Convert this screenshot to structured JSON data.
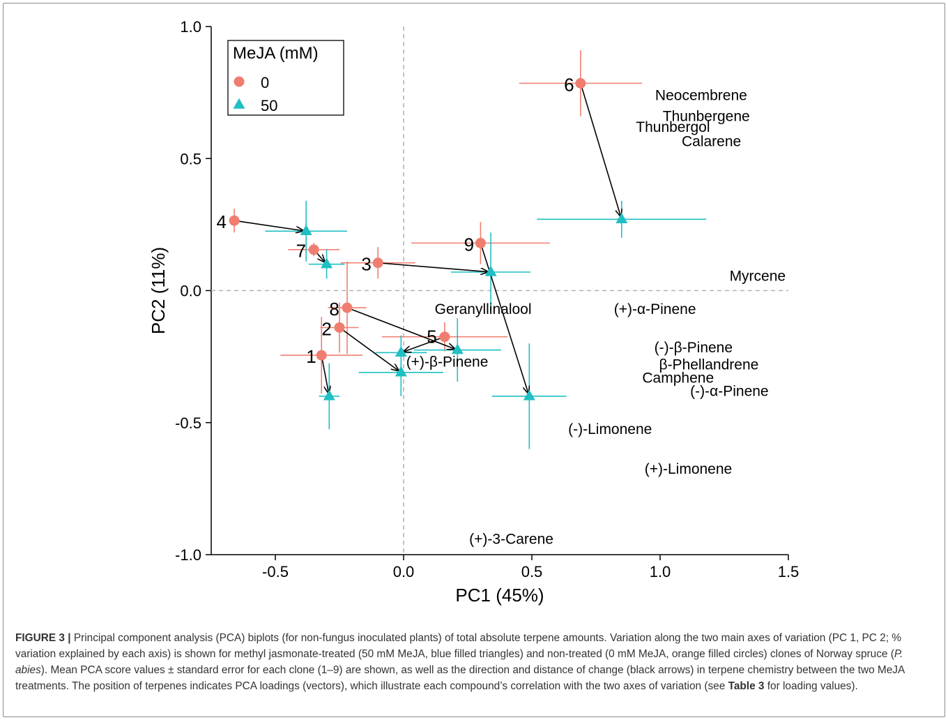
{
  "chart_data": {
    "type": "scatter",
    "xlabel": "PC1 (45%)",
    "ylabel": "PC2 (11%)",
    "xlim": [
      -0.75,
      1.5
    ],
    "ylim": [
      -1.0,
      1.0
    ],
    "xticks": [
      "-0.5",
      "0.0",
      "0.5",
      "1.0",
      "1.5"
    ],
    "xtick_values": [
      -0.5,
      0.0,
      0.5,
      1.0,
      1.5
    ],
    "yticks": [
      "1.0",
      "0.5",
      "0.0",
      "-0.5",
      "-1.0"
    ],
    "ytick_values": [
      1.0,
      0.5,
      0.0,
      -0.5,
      -1.0
    ],
    "reference_lines": {
      "x": 0,
      "y": 0,
      "style": "dashed"
    },
    "legend": {
      "title": "MeJA (mM)",
      "position": "top-left"
    },
    "series": [
      {
        "name": "0",
        "marker": "circle",
        "color": "#F07E70",
        "points": [
          {
            "label": "1",
            "x": -0.32,
            "y": -0.245,
            "xerr": 0.16,
            "yerr": 0.145
          },
          {
            "label": "2",
            "x": -0.25,
            "y": -0.14,
            "xerr": 0.075,
            "yerr": 0.095
          },
          {
            "label": "3",
            "x": -0.1,
            "y": 0.105,
            "xerr": 0.145,
            "yerr": 0.06
          },
          {
            "label": "4",
            "x": -0.66,
            "y": 0.265,
            "xerr": 0.02,
            "yerr": 0.045
          },
          {
            "label": "5",
            "x": 0.16,
            "y": -0.175,
            "xerr": 0.245,
            "yerr": 0.055
          },
          {
            "label": "6",
            "x": 0.69,
            "y": 0.785,
            "xerr": 0.24,
            "yerr": 0.125
          },
          {
            "label": "7",
            "x": -0.35,
            "y": 0.155,
            "xerr": 0.1,
            "yerr": 0.025
          },
          {
            "label": "8",
            "x": -0.22,
            "y": -0.065,
            "xerr": 0.075,
            "yerr": 0.175
          },
          {
            "label": "9",
            "x": 0.3,
            "y": 0.18,
            "xerr": 0.27,
            "yerr": 0.08
          }
        ]
      },
      {
        "name": "50",
        "marker": "triangle",
        "color": "#1FBFC3",
        "points": [
          {
            "label": "1",
            "x": -0.29,
            "y": -0.4,
            "xerr": 0.04,
            "yerr": 0.125
          },
          {
            "label": "2",
            "x": -0.01,
            "y": -0.31,
            "xerr": 0.165,
            "yerr": 0.09
          },
          {
            "label": "3",
            "x": 0.34,
            "y": 0.07,
            "xerr": 0.155,
            "yerr": 0.15
          },
          {
            "label": "4",
            "x": -0.38,
            "y": 0.225,
            "xerr": 0.16,
            "yerr": 0.115
          },
          {
            "label": "5",
            "x": -0.01,
            "y": -0.235,
            "xerr": 0.1,
            "yerr": 0.065
          },
          {
            "label": "6",
            "x": 0.85,
            "y": 0.27,
            "xerr": 0.33,
            "yerr": 0.07
          },
          {
            "label": "7",
            "x": -0.3,
            "y": 0.1,
            "xerr": 0.07,
            "yerr": 0.055
          },
          {
            "label": "8",
            "x": 0.21,
            "y": -0.225,
            "xerr": 0.17,
            "yerr": 0.12
          },
          {
            "label": "9",
            "x": 0.49,
            "y": -0.4,
            "xerr": 0.145,
            "yerr": 0.2
          }
        ]
      }
    ],
    "point_labels": [
      {
        "text": "1",
        "x": -0.36,
        "y": -0.25
      },
      {
        "text": "2",
        "x": -0.3,
        "y": -0.145
      },
      {
        "text": "3",
        "x": -0.145,
        "y": 0.1
      },
      {
        "text": "4",
        "x": -0.71,
        "y": 0.26
      },
      {
        "text": "5",
        "x": 0.11,
        "y": -0.175
      },
      {
        "text": "6",
        "x": 0.645,
        "y": 0.78
      },
      {
        "text": "7",
        "x": -0.4,
        "y": 0.15
      },
      {
        "text": "8",
        "x": -0.27,
        "y": -0.07
      },
      {
        "text": "9",
        "x": 0.255,
        "y": 0.175
      }
    ],
    "loadings": [
      {
        "text": "Neocembrene",
        "x": 1.16,
        "y": 0.74
      },
      {
        "text": "Thunbergene",
        "x": 1.18,
        "y": 0.66
      },
      {
        "text": "Thunbergol",
        "x": 1.05,
        "y": 0.62
      },
      {
        "text": "Calarene",
        "x": 1.2,
        "y": 0.565
      },
      {
        "text": "Myrcene",
        "x": 1.38,
        "y": 0.055
      },
      {
        "text": "Geranyllinalool",
        "x": 0.31,
        "y": -0.07
      },
      {
        "text": "(+)-α-Pinene",
        "x": 0.98,
        "y": -0.07
      },
      {
        "text": "(-)-β-Pinene",
        "x": 1.13,
        "y": -0.215
      },
      {
        "text": "β-Phellandrene",
        "x": 1.19,
        "y": -0.28
      },
      {
        "text": "Camphene",
        "x": 1.07,
        "y": -0.33
      },
      {
        "text": "(+)-β-Pinene",
        "x": 0.17,
        "y": -0.27
      },
      {
        "text": "(-)-α-Pinene",
        "x": 1.27,
        "y": -0.38
      },
      {
        "text": "(-)-Limonene",
        "x": 0.805,
        "y": -0.525
      },
      {
        "text": "(+)-Limonene",
        "x": 1.11,
        "y": -0.675
      },
      {
        "text": "(+)-3-Carene",
        "x": 0.42,
        "y": -0.94
      }
    ]
  },
  "caption": {
    "lead": "FIGURE 3 |",
    "text": " Principal component analysis (PCA) biplots (for non-fungus inoculated plants) of total absolute terpene amounts. Variation along the two main axes of variation (PC 1, PC 2; % variation explained by each axis) is shown for methyl jasmonate-treated (50 mM MeJA, blue filled triangles) and non-treated (0 mM MeJA, orange filled circles) clones of Norway spruce (",
    "species": "P. abies",
    "text2": "). Mean PCA score values ± standard error for each clone (1–9) are shown, as well as the direction and distance of change (black arrows) in terpene chemistry between the two MeJA treatments. The position of terpenes indicates PCA loadings (vectors), which illustrate each compound’s correlation with the two axes of variation (see ",
    "table_ref": "Table 3",
    "text3": " for loading values)."
  }
}
